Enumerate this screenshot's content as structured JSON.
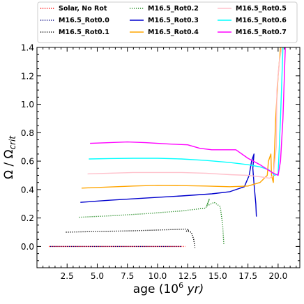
{
  "chart_data": {
    "type": "line",
    "xlabel": "age (10",
    "xlabel_sup": "6",
    "xlabel_unit": " yr)",
    "ylabel": "Ω / Ω",
    "ylabel_sub": "crit",
    "xlim": [
      0,
      21.8
    ],
    "ylim": [
      -0.15,
      1.4
    ],
    "xticks": [
      "2.5",
      "5.0",
      "7.5",
      "10.0",
      "12.5",
      "15.0",
      "17.5",
      "20.0"
    ],
    "xtick_values": [
      2.5,
      5.0,
      7.5,
      10.0,
      12.5,
      15.0,
      17.5,
      20.0
    ],
    "yticks": [
      "0.0",
      "0.2",
      "0.4",
      "0.6",
      "0.8",
      "1.0",
      "1.2",
      "1.4"
    ],
    "ytick_values": [
      0.0,
      0.2,
      0.4,
      0.6,
      0.8,
      1.0,
      1.2,
      1.4
    ],
    "legend_position": "top, outside plot",
    "series": [
      {
        "name": "Solar, No Rot",
        "color": "#ff0000",
        "dash": "dotted",
        "x": [
          1.0,
          3.0,
          6.0,
          9.0,
          12.3
        ],
        "y": [
          0.0,
          0.0,
          0.0,
          0.0,
          0.0
        ]
      },
      {
        "name": "M16.5_Rot0.0",
        "color": "#000080",
        "dash": "dotted",
        "x": [
          1.1,
          3.0,
          6.0,
          9.0,
          12.0
        ],
        "y": [
          0.0,
          0.0,
          0.0,
          0.0,
          0.0
        ]
      },
      {
        "name": "M16.5_Rot0.1",
        "color": "#000000",
        "dash": "dotted",
        "x": [
          2.4,
          5.0,
          8.0,
          11.0,
          12.4,
          12.6,
          12.4,
          12.8,
          13.0,
          13.1
        ],
        "y": [
          0.1,
          0.105,
          0.11,
          0.118,
          0.122,
          0.115,
          0.108,
          0.1,
          0.05,
          -0.01
        ]
      },
      {
        "name": "M16.5_Rot0.2",
        "color": "#228b22",
        "dash": "dotted",
        "x": [
          3.5,
          6.0,
          9.0,
          12.0,
          14.0,
          14.3,
          14.1,
          14.7,
          15.2,
          15.4,
          15.5
        ],
        "y": [
          0.205,
          0.215,
          0.23,
          0.25,
          0.27,
          0.335,
          0.285,
          0.31,
          0.28,
          0.15,
          0.01
        ]
      },
      {
        "name": "M16.5_Rot0.3",
        "color": "#0000cd",
        "dash": "solid",
        "x": [
          3.6,
          6.0,
          9.0,
          12.0,
          14.5,
          16.0,
          17.2,
          17.6,
          17.8,
          18.0,
          17.9,
          18.0,
          18.15,
          18.2
        ],
        "y": [
          0.31,
          0.325,
          0.34,
          0.355,
          0.37,
          0.385,
          0.42,
          0.5,
          0.6,
          0.65,
          0.55,
          0.44,
          0.3,
          0.21
        ]
      },
      {
        "name": "M16.5_Rot0.4",
        "color": "#ffa500",
        "dash": "solid",
        "x": [
          3.7,
          6.0,
          8.0,
          10.0,
          12.0,
          14.0,
          16.0,
          17.5,
          18.5,
          19.1,
          19.2,
          19.4,
          19.45,
          19.6,
          19.8,
          20.0,
          20.2
        ],
        "y": [
          0.41,
          0.418,
          0.425,
          0.43,
          0.428,
          0.425,
          0.42,
          0.425,
          0.45,
          0.5,
          0.6,
          0.65,
          0.5,
          0.45,
          0.9,
          1.2,
          1.4
        ]
      },
      {
        "name": "M16.5_Rot0.5",
        "color": "#ffc0cb",
        "dash": "solid",
        "x": [
          4.2,
          6.0,
          8.0,
          10.0,
          12.0,
          14.0,
          16.0,
          17.5,
          18.5,
          19.3,
          19.6,
          19.85,
          19.9,
          20.1,
          20.3
        ],
        "y": [
          0.51,
          0.515,
          0.52,
          0.52,
          0.52,
          0.515,
          0.505,
          0.5,
          0.49,
          0.48,
          0.5,
          0.7,
          1.1,
          1.3,
          1.4
        ]
      },
      {
        "name": "M16.5_Rot0.6",
        "color": "#00ffff",
        "dash": "solid",
        "x": [
          4.3,
          6.0,
          8.0,
          10.0,
          12.0,
          14.0,
          16.0,
          17.5,
          18.5,
          19.2,
          19.5,
          19.7,
          20.0,
          20.2,
          20.4
        ],
        "y": [
          0.615,
          0.618,
          0.62,
          0.62,
          0.615,
          0.605,
          0.59,
          0.575,
          0.56,
          0.54,
          0.52,
          0.5,
          0.51,
          0.9,
          1.4
        ]
      },
      {
        "name": "M16.5_Rot0.7",
        "color": "#ff00ff",
        "dash": "solid",
        "x": [
          4.4,
          6.0,
          7.5,
          9.0,
          11.0,
          12.5,
          13.5,
          14.5,
          15.5,
          16.5,
          17.5,
          18.5,
          19.5,
          20.0,
          20.2,
          20.4,
          20.6
        ],
        "y": [
          0.725,
          0.73,
          0.735,
          0.73,
          0.72,
          0.715,
          0.69,
          0.68,
          0.68,
          0.68,
          0.62,
          0.575,
          0.52,
          0.5,
          0.6,
          0.9,
          1.4
        ]
      }
    ]
  }
}
